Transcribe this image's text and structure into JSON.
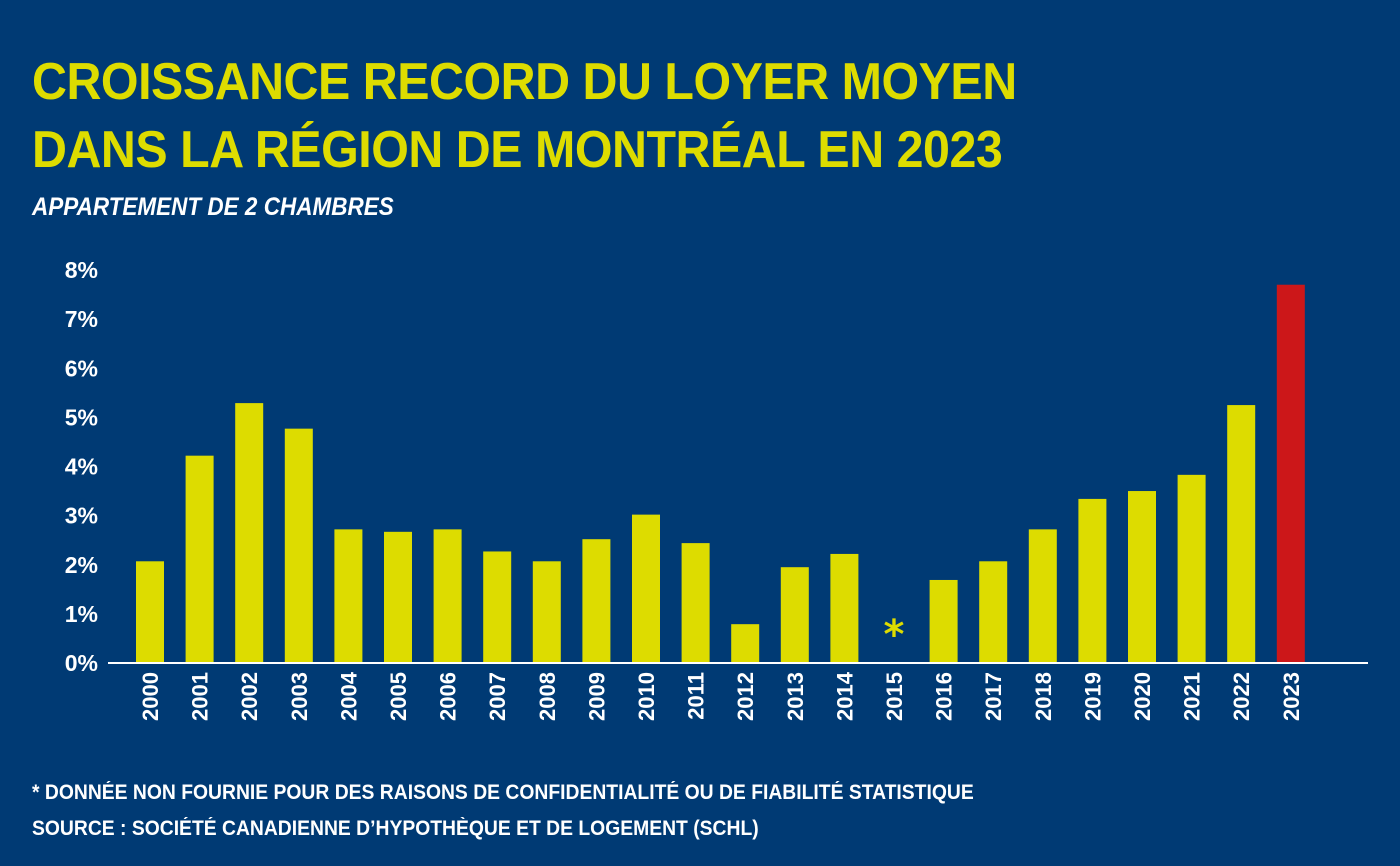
{
  "header": {
    "title_line1": "CROISSANCE RECORD DU LOYER MOYEN",
    "title_line2": "DANS LA RÉGION DE MONTRÉAL EN 2023",
    "subtitle": "APPARTEMENT DE 2 CHAMBRES"
  },
  "footer": {
    "note": "* DONNÉE NON FOURNIE POUR DES RAISONS DE CONFIDENTIALITÉ OU DE FIABILITÉ STATISTIQUE",
    "source": "SOURCE : SOCIÉTÉ CANADIENNE D’HYPOTHÈQUE  ET DE LOGEMENT (SCHL)"
  },
  "colors": {
    "background": "#003a74",
    "bar": "#dddc00",
    "highlight_bar": "#cc1719",
    "text": "#ffffff",
    "title": "#dddc00"
  },
  "chart_data": {
    "type": "bar",
    "title": "CROISSANCE RECORD DU LOYER MOYEN DANS LA RÉGION DE MONTRÉAL EN 2023",
    "subtitle": "APPARTEMENT DE 2 CHAMBRES",
    "xlabel": "",
    "ylabel": "",
    "ylim": [
      0,
      8
    ],
    "yticks": [
      "0%",
      "1%",
      "2%",
      "3%",
      "4%",
      "5%",
      "6%",
      "7%",
      "8%"
    ],
    "grid": false,
    "legend": "none",
    "categories": [
      "2000",
      "2001",
      "2002",
      "2003",
      "2004",
      "2005",
      "2006",
      "2007",
      "2008",
      "2009",
      "2010",
      "2011",
      "2012",
      "2013",
      "2014",
      "2015",
      "2016",
      "2017",
      "2018",
      "2019",
      "2020",
      "2021",
      "2022",
      "2023"
    ],
    "values": [
      2.05,
      4.2,
      5.27,
      4.75,
      2.7,
      2.65,
      2.7,
      2.25,
      2.05,
      2.5,
      3.0,
      2.42,
      0.77,
      1.93,
      2.2,
      null,
      1.67,
      2.05,
      2.7,
      3.32,
      3.48,
      3.81,
      5.23,
      7.68
    ],
    "highlight": "2023",
    "missing_marker": "*",
    "annotations": [
      "*"
    ]
  }
}
